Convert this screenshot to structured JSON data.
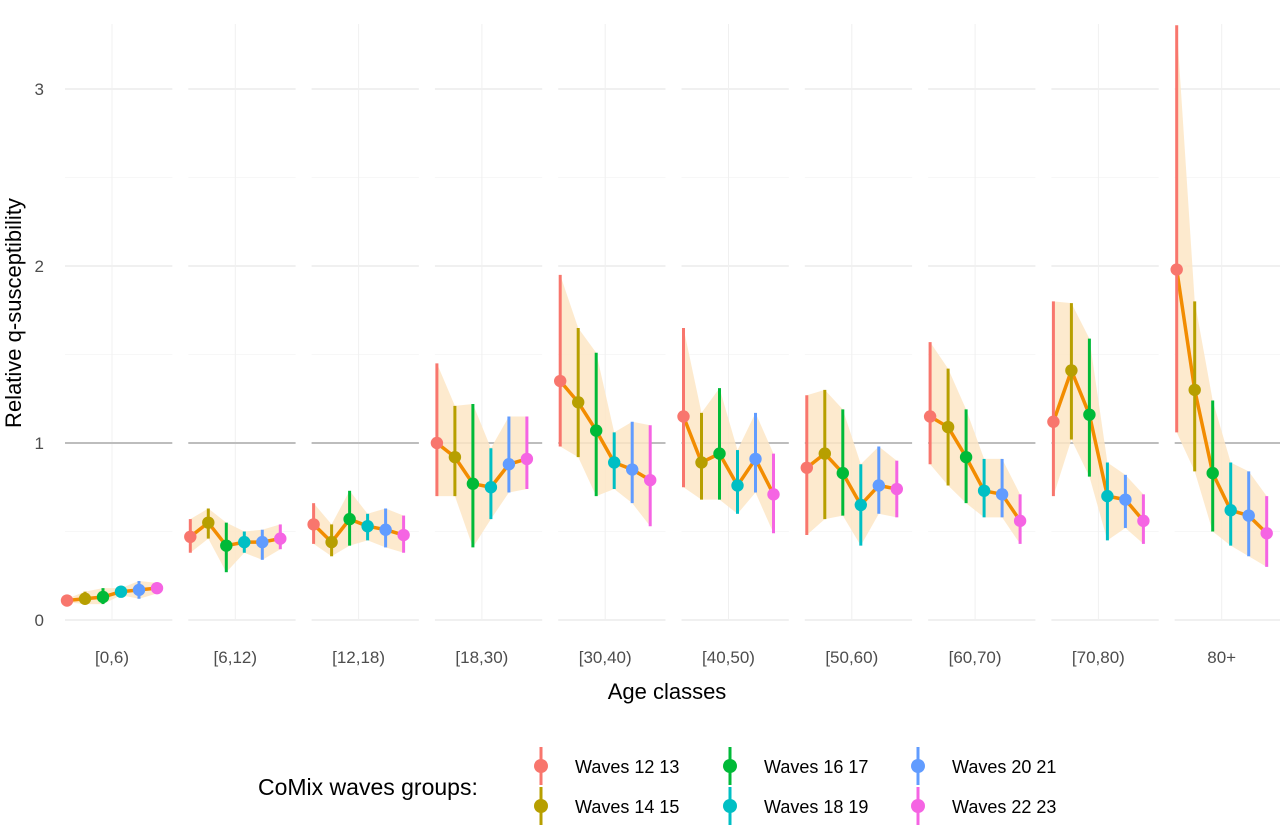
{
  "chart_data": {
    "type": "line",
    "title": "",
    "xlabel": "Age classes",
    "ylabel": "Relative q-susceptibility",
    "ylim": [
      0,
      3.35
    ],
    "yticks": [
      0,
      1,
      2,
      3
    ],
    "ytick_labels": [
      "0",
      "1",
      "2",
      "3"
    ],
    "reference_line": 1,
    "grid": true,
    "categories": [
      "[0,6)",
      "[6,12)",
      "[12,18)",
      "[18,30)",
      "[30,40)",
      "[40,50)",
      "[50,60)",
      "[60,70)",
      "[70,80)",
      "80+"
    ],
    "legend": {
      "title": "CoMix waves groups:",
      "position": "bottom"
    },
    "trend_color": "#f28c00",
    "band_color": "#fde6c6",
    "series": [
      {
        "name": "Waves 12 13",
        "color": "#f8766d",
        "values": [
          0.11,
          0.47,
          0.54,
          1.0,
          1.35,
          1.15,
          0.86,
          1.15,
          1.12,
          1.98
        ],
        "lower": [
          0.1,
          0.38,
          0.43,
          0.7,
          0.98,
          0.75,
          0.48,
          0.88,
          0.7,
          1.06
        ],
        "upper": [
          0.12,
          0.57,
          0.66,
          1.45,
          1.95,
          1.65,
          1.27,
          1.57,
          1.8,
          3.36
        ]
      },
      {
        "name": "Waves 14 15",
        "color": "#b79f00",
        "values": [
          0.12,
          0.55,
          0.44,
          0.92,
          1.23,
          0.89,
          0.94,
          1.09,
          1.41,
          1.3
        ],
        "lower": [
          0.09,
          0.46,
          0.36,
          0.7,
          0.92,
          0.68,
          0.57,
          0.76,
          1.02,
          0.84
        ],
        "upper": [
          0.16,
          0.63,
          0.54,
          1.21,
          1.65,
          1.17,
          1.3,
          1.42,
          1.79,
          1.8
        ]
      },
      {
        "name": "Waves 16 17",
        "color": "#00ba38",
        "values": [
          0.13,
          0.42,
          0.57,
          0.77,
          1.07,
          0.94,
          0.83,
          0.92,
          1.16,
          0.83
        ],
        "lower": [
          0.09,
          0.27,
          0.42,
          0.41,
          0.7,
          0.68,
          0.59,
          0.66,
          0.81,
          0.5
        ],
        "upper": [
          0.18,
          0.55,
          0.73,
          1.22,
          1.51,
          1.31,
          1.19,
          1.19,
          1.59,
          1.24
        ]
      },
      {
        "name": "Waves 18 19",
        "color": "#00bfc4",
        "values": [
          0.16,
          0.44,
          0.53,
          0.75,
          0.89,
          0.76,
          0.65,
          0.73,
          0.7,
          0.62
        ],
        "lower": [
          0.14,
          0.38,
          0.45,
          0.57,
          0.74,
          0.6,
          0.42,
          0.58,
          0.45,
          0.42
        ],
        "upper": [
          0.18,
          0.5,
          0.6,
          0.97,
          1.06,
          0.96,
          0.88,
          0.91,
          0.89,
          0.89
        ]
      },
      {
        "name": "Waves 20 21",
        "color": "#619cff",
        "values": [
          0.17,
          0.44,
          0.51,
          0.88,
          0.85,
          0.91,
          0.76,
          0.71,
          0.68,
          0.59
        ],
        "lower": [
          0.12,
          0.34,
          0.41,
          0.72,
          0.66,
          0.72,
          0.6,
          0.58,
          0.52,
          0.36
        ],
        "upper": [
          0.22,
          0.51,
          0.63,
          1.15,
          1.12,
          1.17,
          0.98,
          0.91,
          0.82,
          0.84
        ]
      },
      {
        "name": "Waves 22 23",
        "color": "#f564e3",
        "values": [
          0.18,
          0.46,
          0.48,
          0.91,
          0.79,
          0.71,
          0.74,
          0.56,
          0.56,
          0.49
        ],
        "lower": [
          0.15,
          0.4,
          0.38,
          0.74,
          0.53,
          0.49,
          0.58,
          0.43,
          0.43,
          0.3
        ],
        "upper": [
          0.21,
          0.54,
          0.59,
          1.15,
          1.1,
          0.94,
          0.9,
          0.71,
          0.71,
          0.7
        ]
      }
    ]
  }
}
